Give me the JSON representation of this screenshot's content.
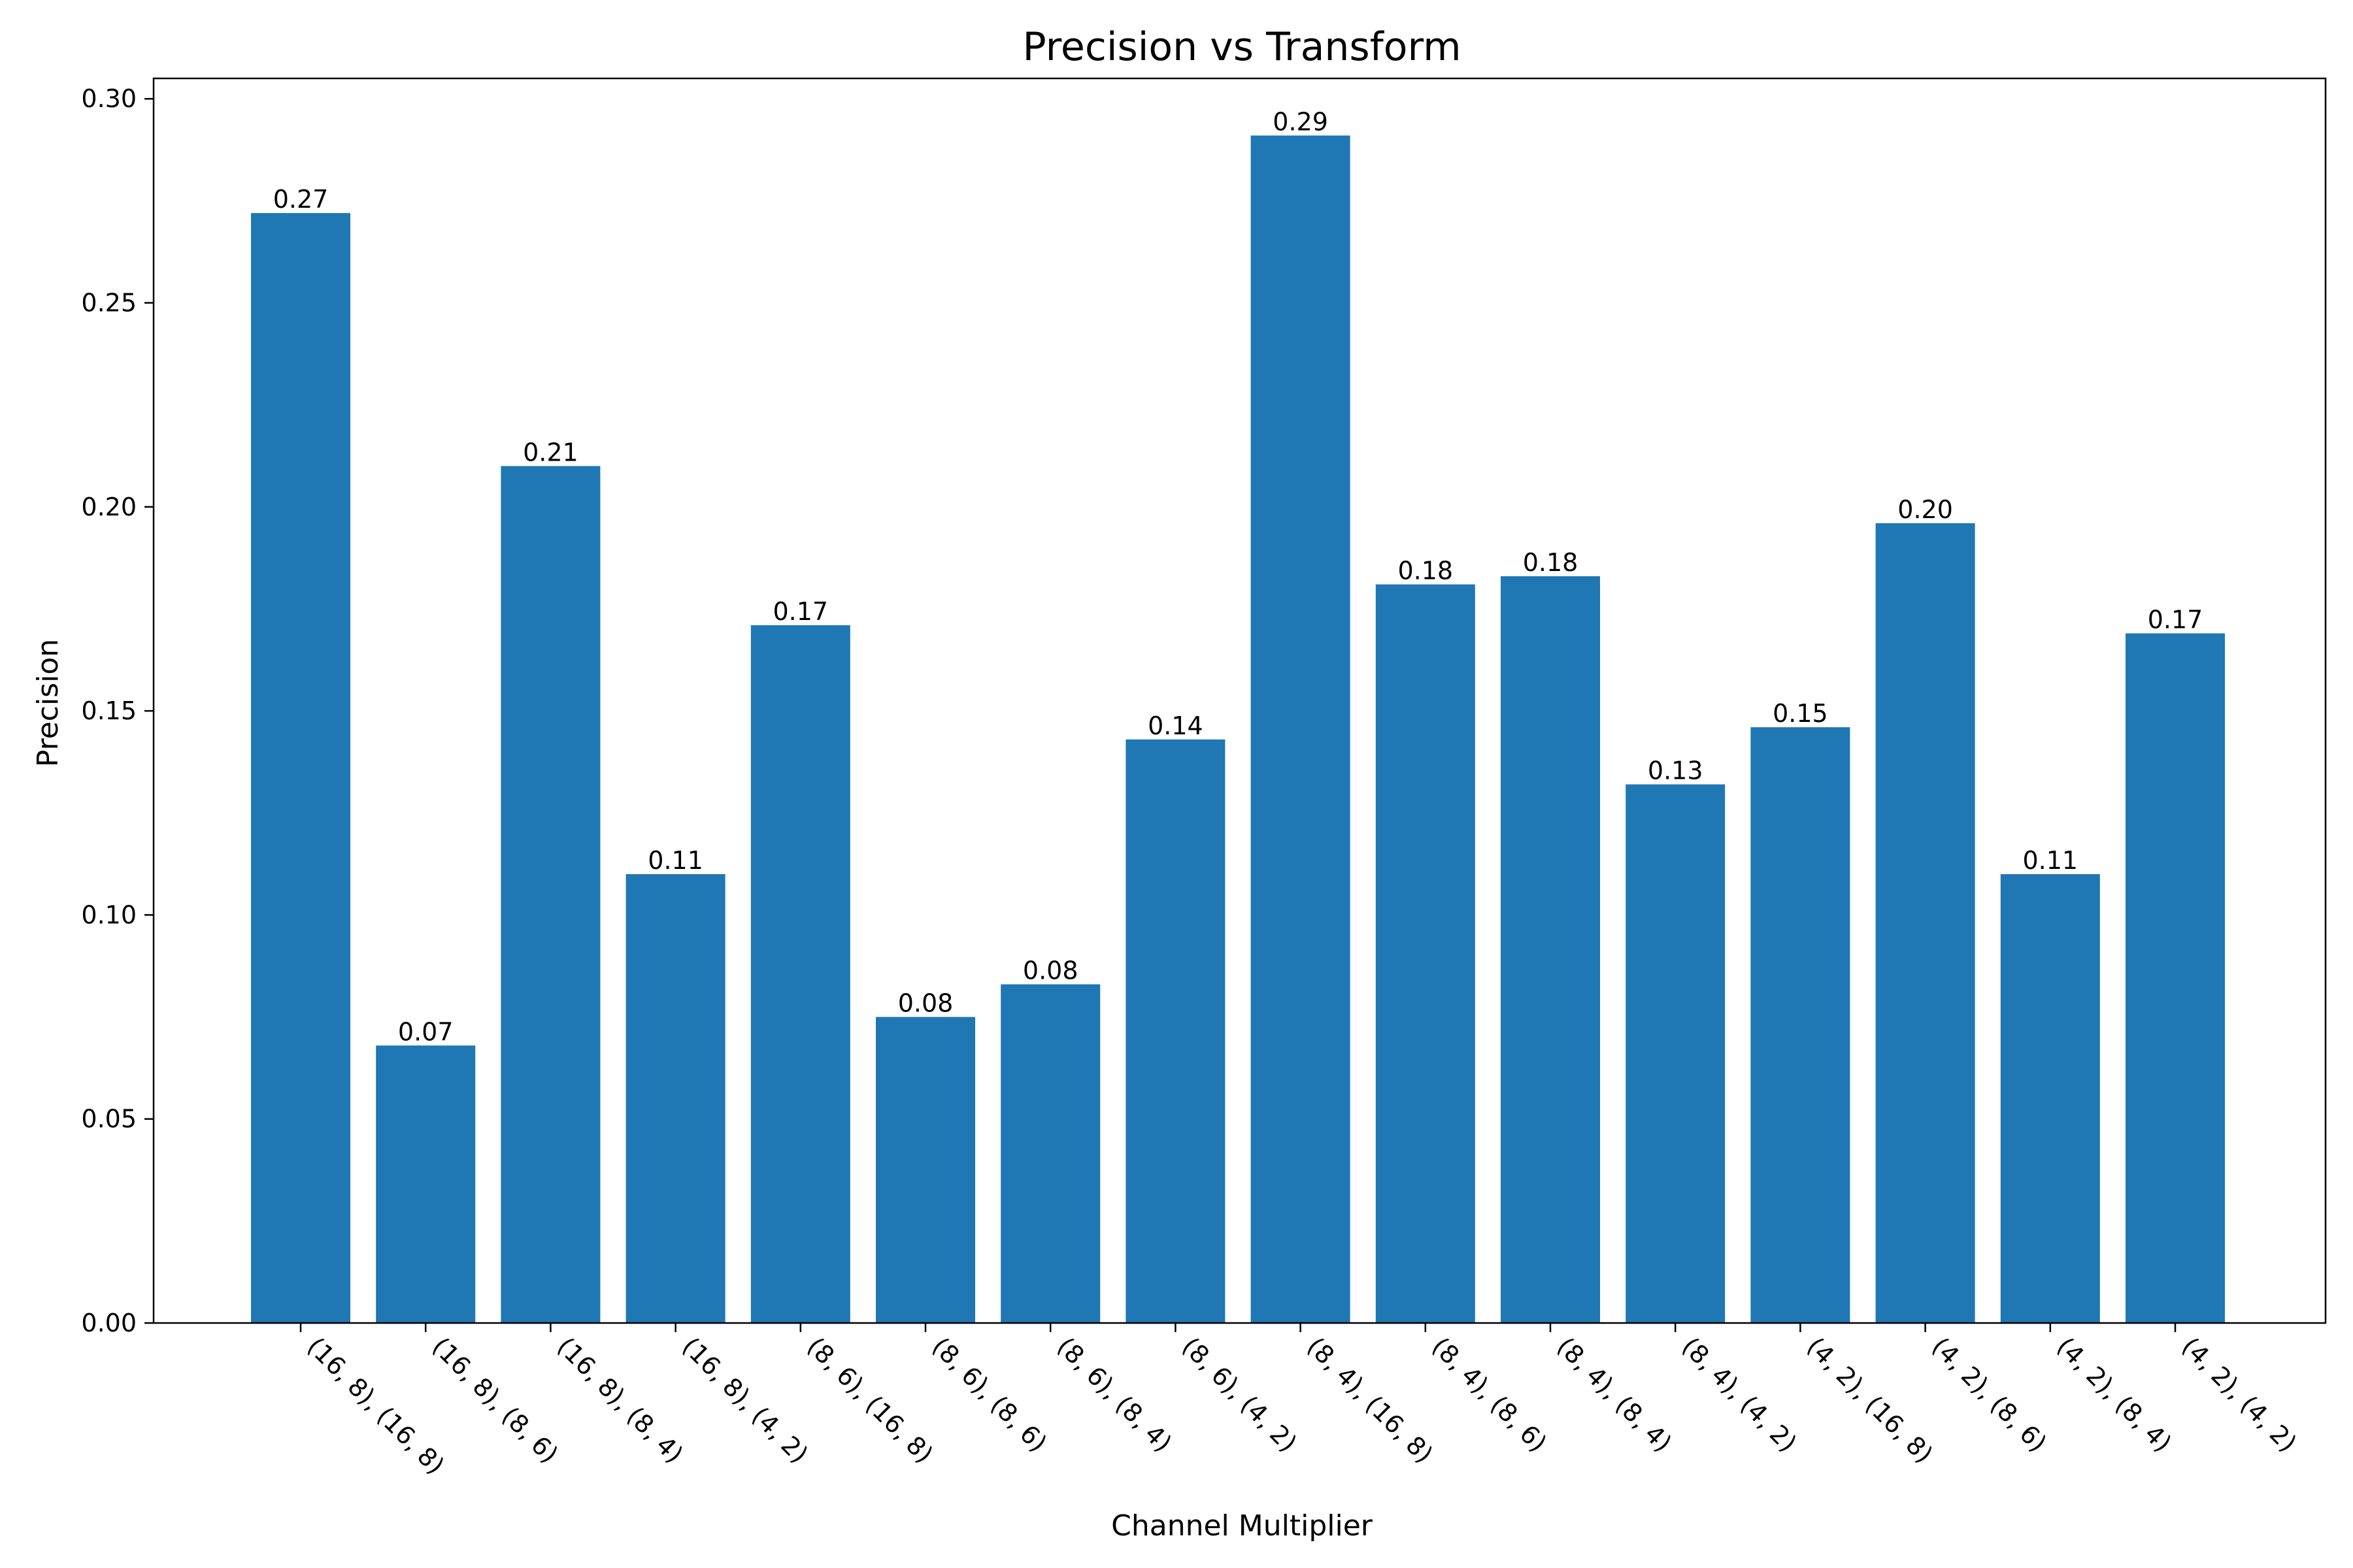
{
  "chart_data": {
    "type": "bar",
    "title": "Precision vs Transform",
    "xlabel": "Channel Multiplier",
    "ylabel": "Precision",
    "categories": [
      "(16, 8), (16, 8)",
      "(16, 8), (8, 6)",
      "(16, 8), (8, 4)",
      "(16, 8), (4, 2)",
      "(8, 6), (16, 8)",
      "(8, 6), (8, 6)",
      "(8, 6), (8, 4)",
      "(8, 6), (4, 2)",
      "(8, 4), (16, 8)",
      "(8, 4), (8, 6)",
      "(8, 4), (8, 4)",
      "(8, 4), (4, 2)",
      "(4, 2), (16, 8)",
      "(4, 2), (8, 6)",
      "(4, 2), (8, 4)",
      "(4, 2), (4, 2)"
    ],
    "values": [
      0.272,
      0.068,
      0.21,
      0.11,
      0.171,
      0.075,
      0.083,
      0.143,
      0.291,
      0.181,
      0.183,
      0.132,
      0.146,
      0.196,
      0.11,
      0.169
    ],
    "data_labels": [
      "0.27",
      "0.07",
      "0.21",
      "0.11",
      "0.17",
      "0.08",
      "0.08",
      "0.14",
      "0.29",
      "0.18",
      "0.18",
      "0.13",
      "0.15",
      "0.20",
      "0.11",
      "0.17"
    ],
    "ylim": [
      0,
      0.305
    ],
    "yticks": [
      0.0,
      0.05,
      0.1,
      0.15,
      0.2,
      0.25,
      0.3
    ],
    "ytick_labels": [
      "0.00",
      "0.05",
      "0.10",
      "0.15",
      "0.20",
      "0.25",
      "0.30"
    ],
    "grid": false,
    "legend": "none",
    "bar_color": "#1f77b4"
  }
}
